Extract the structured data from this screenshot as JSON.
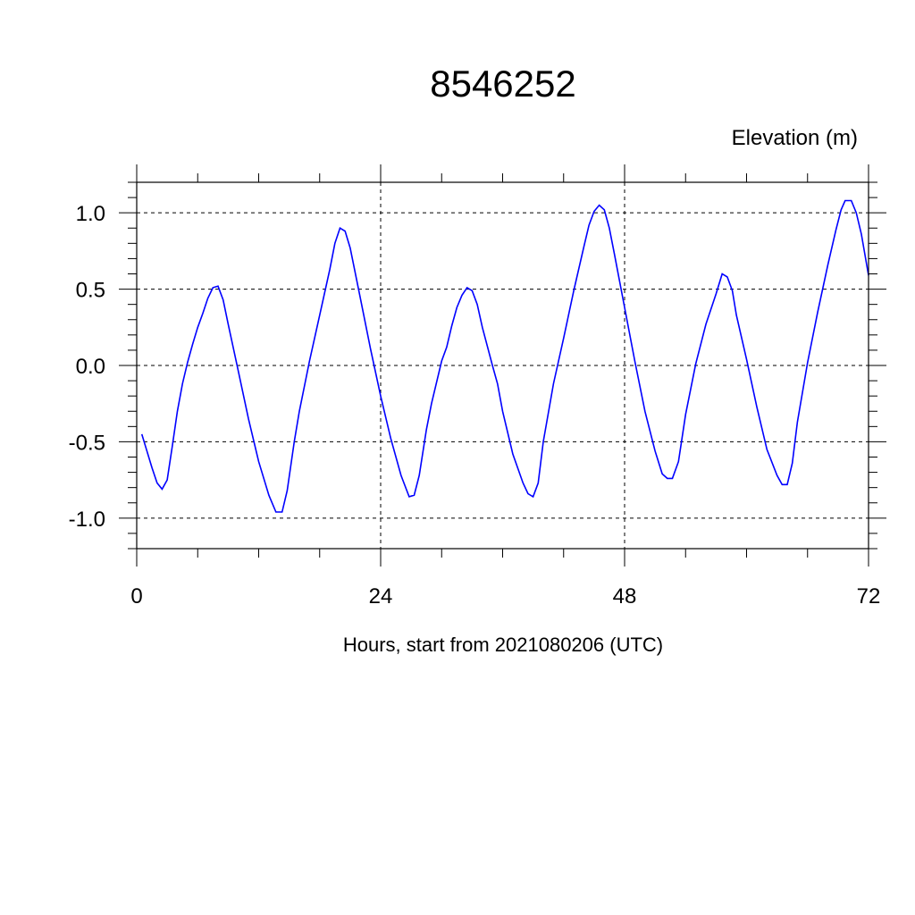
{
  "chart_data": {
    "type": "line",
    "title": "8546252",
    "ylabel": "Elevation (m)",
    "xlabel": "Hours, start from 2021080206 (UTC)",
    "xlim": [
      0,
      72
    ],
    "ylim": [
      -1.2,
      1.2
    ],
    "x_ticks": [
      0,
      24,
      48,
      72
    ],
    "x_tick_labels": [
      "0",
      "24",
      "48",
      "72"
    ],
    "x_minor_step": 6,
    "y_ticks": [
      -1.0,
      -0.5,
      0.0,
      0.5,
      1.0
    ],
    "y_tick_labels": [
      "-1.0",
      "-0.5",
      "0.0",
      "0.5",
      "1.0"
    ],
    "y_minor_step": 0.1,
    "grid": true,
    "line_color": "#0000ff",
    "series": [
      {
        "points": [
          [
            0.5,
            -0.45
          ],
          [
            1,
            -0.56
          ],
          [
            1.5,
            -0.67
          ],
          [
            2,
            -0.77
          ],
          [
            2.5,
            -0.81
          ],
          [
            3,
            -0.75
          ],
          [
            3.5,
            -0.53
          ],
          [
            4,
            -0.3
          ],
          [
            4.5,
            -0.12
          ],
          [
            5,
            0.02
          ],
          [
            5.5,
            0.14
          ],
          [
            6,
            0.25
          ],
          [
            6.5,
            0.34
          ],
          [
            7,
            0.44
          ],
          [
            7.5,
            0.51
          ],
          [
            8,
            0.52
          ],
          [
            8.5,
            0.43
          ],
          [
            9,
            0.27
          ],
          [
            10,
            -0.04
          ],
          [
            11,
            -0.35
          ],
          [
            12,
            -0.63
          ],
          [
            13,
            -0.85
          ],
          [
            13.7,
            -0.96
          ],
          [
            14.3,
            -0.96
          ],
          [
            14.8,
            -0.82
          ],
          [
            15.5,
            -0.5
          ],
          [
            16,
            -0.3
          ],
          [
            17,
            0.03
          ],
          [
            18,
            0.33
          ],
          [
            19,
            0.63
          ],
          [
            19.5,
            0.8
          ],
          [
            20,
            0.9
          ],
          [
            20.5,
            0.88
          ],
          [
            21,
            0.77
          ],
          [
            22,
            0.44
          ],
          [
            23,
            0.11
          ],
          [
            24,
            -0.2
          ],
          [
            25,
            -0.48
          ],
          [
            26,
            -0.72
          ],
          [
            26.8,
            -0.86
          ],
          [
            27.3,
            -0.85
          ],
          [
            27.8,
            -0.72
          ],
          [
            28.5,
            -0.42
          ],
          [
            29,
            -0.25
          ],
          [
            30,
            0.03
          ],
          [
            30.5,
            0.12
          ],
          [
            31,
            0.26
          ],
          [
            31.5,
            0.38
          ],
          [
            32,
            0.46
          ],
          [
            32.5,
            0.51
          ],
          [
            33,
            0.49
          ],
          [
            33.5,
            0.4
          ],
          [
            34,
            0.25
          ],
          [
            35,
            0.0
          ],
          [
            35.5,
            -0.12
          ],
          [
            36,
            -0.3
          ],
          [
            37,
            -0.58
          ],
          [
            38,
            -0.77
          ],
          [
            38.5,
            -0.84
          ],
          [
            39,
            -0.86
          ],
          [
            39.5,
            -0.77
          ],
          [
            40,
            -0.5
          ],
          [
            41,
            -0.12
          ],
          [
            42,
            0.18
          ],
          [
            43,
            0.49
          ],
          [
            44,
            0.78
          ],
          [
            44.5,
            0.92
          ],
          [
            45,
            1.01
          ],
          [
            45.5,
            1.05
          ],
          [
            46,
            1.02
          ],
          [
            46.5,
            0.9
          ],
          [
            47,
            0.73
          ],
          [
            48,
            0.38
          ],
          [
            49,
            0.03
          ],
          [
            50,
            -0.3
          ],
          [
            51,
            -0.56
          ],
          [
            51.7,
            -0.71
          ],
          [
            52.2,
            -0.74
          ],
          [
            52.7,
            -0.74
          ],
          [
            53.3,
            -0.63
          ],
          [
            54,
            -0.32
          ],
          [
            55,
            0.01
          ],
          [
            56,
            0.27
          ],
          [
            57,
            0.47
          ],
          [
            57.6,
            0.6
          ],
          [
            58.1,
            0.58
          ],
          [
            58.6,
            0.49
          ],
          [
            59,
            0.33
          ],
          [
            60,
            0.04
          ],
          [
            61,
            -0.27
          ],
          [
            62,
            -0.55
          ],
          [
            63,
            -0.72
          ],
          [
            63.5,
            -0.78
          ],
          [
            64,
            -0.78
          ],
          [
            64.5,
            -0.64
          ],
          [
            65,
            -0.37
          ],
          [
            66,
            0.02
          ],
          [
            67,
            0.35
          ],
          [
            68,
            0.66
          ],
          [
            68.8,
            0.89
          ],
          [
            69.3,
            1.02
          ],
          [
            69.7,
            1.08
          ],
          [
            70.3,
            1.08
          ],
          [
            70.8,
            1.0
          ],
          [
            71.3,
            0.86
          ],
          [
            72,
            0.59
          ]
        ]
      }
    ]
  }
}
